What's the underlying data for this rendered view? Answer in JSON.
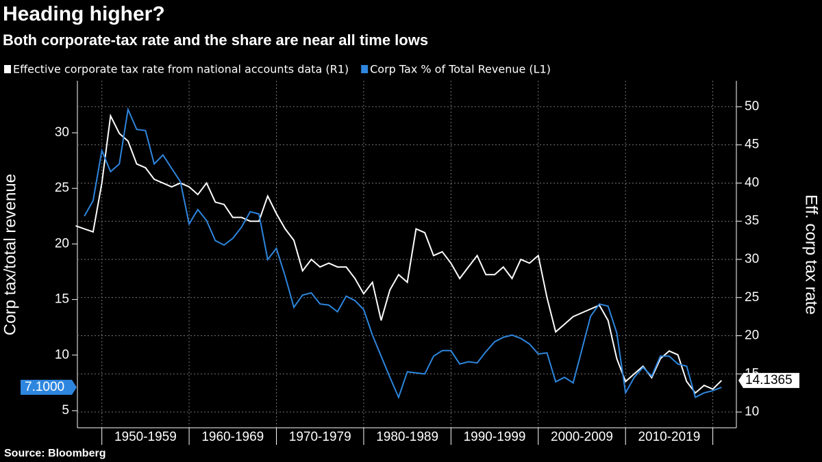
{
  "chart_data": {
    "type": "line",
    "title": "Heading higher?",
    "subtitle": "Both corporate-tax rate and the share are near all time lows",
    "ylabel": "Corp tax/total revenue",
    "y2label": "Eff. corp tax rate",
    "source": "Source: Bloomberg",
    "xlim": [
      1947.2,
      2022.7
    ],
    "xticks": [
      {
        "value": 1955,
        "label": "1950-1959"
      },
      {
        "value": 1965,
        "label": "1960-1969"
      },
      {
        "value": 1975,
        "label": "1970-1979"
      },
      {
        "value": 1985,
        "label": "1980-1989"
      },
      {
        "value": 1995,
        "label": "1990-1999"
      },
      {
        "value": 2005,
        "label": "2000-2009"
      },
      {
        "value": 2015,
        "label": "2010-2019"
      }
    ],
    "xgrid": [
      1950,
      1960,
      1970,
      1980,
      1990,
      2000,
      2010,
      2020
    ],
    "ylim": [
      3.46,
      34.68
    ],
    "yticks": [
      5,
      10,
      15,
      20,
      25,
      30
    ],
    "y2lim": [
      7.94,
      53.4
    ],
    "y2ticks": [
      10,
      15,
      20,
      25,
      30,
      35,
      40,
      45,
      50
    ],
    "grid": true,
    "series": [
      {
        "name": "Effective corporate tax rate from national accounts data (R1)",
        "color": "#ffffff",
        "axis": "y2",
        "x": [
          1947,
          1948,
          1949,
          1950,
          1951,
          1952,
          1953,
          1954,
          1955,
          1956,
          1957,
          1958,
          1959,
          1960,
          1961,
          1962,
          1963,
          1964,
          1965,
          1966,
          1967,
          1968,
          1969,
          1970,
          1971,
          1972,
          1973,
          1974,
          1975,
          1976,
          1977,
          1978,
          1979,
          1980,
          1981,
          1982,
          1983,
          1984,
          1985,
          1986,
          1987,
          1988,
          1989,
          1990,
          1991,
          1992,
          1993,
          1994,
          1995,
          1996,
          1997,
          1998,
          1999,
          2000,
          2001,
          2002,
          2003,
          2004,
          2005,
          2006,
          2007,
          2008,
          2009,
          2010,
          2011,
          2012,
          2013,
          2014,
          2015,
          2016,
          2017,
          2018,
          2019,
          2020,
          2021
        ],
        "values": [
          34.4,
          34.0,
          33.6,
          40.0,
          48.8,
          46.5,
          45.5,
          42.5,
          42.0,
          40.5,
          40.0,
          39.5,
          40.0,
          39.5,
          38.5,
          40.0,
          37.5,
          37.2,
          35.5,
          35.5,
          35.0,
          35.0,
          38.3,
          36.0,
          34.0,
          32.5,
          28.5,
          30.0,
          29.0,
          29.5,
          29.0,
          29.0,
          27.5,
          25.5,
          27.0,
          22.0,
          26.0,
          28.0,
          27.0,
          34.0,
          33.5,
          30.5,
          31.0,
          29.5,
          27.5,
          29.0,
          30.5,
          28.0,
          28.0,
          29.0,
          27.5,
          30.0,
          29.5,
          30.5,
          25.0,
          20.5,
          21.5,
          22.5,
          23.0,
          23.5,
          24.0,
          22.0,
          17.0,
          14.0,
          15.0,
          16.0,
          14.5,
          17.0,
          18.0,
          17.5,
          14.0,
          12.5,
          13.5,
          13.0,
          14.1365
        ],
        "value_labels": [
          null,
          null,
          null,
          null,
          null,
          null,
          null,
          null,
          null,
          null,
          null,
          null,
          null,
          null,
          null,
          null,
          null,
          null,
          null,
          null,
          null,
          null,
          null,
          null,
          null,
          null,
          null,
          null,
          null,
          null,
          null,
          null,
          null,
          null,
          null,
          null,
          null,
          null,
          null,
          null,
          null,
          null,
          null,
          null,
          null,
          null,
          null,
          null,
          null,
          null,
          null,
          null,
          null,
          null,
          null,
          null,
          null,
          null,
          null,
          null,
          null,
          null,
          null,
          null,
          null,
          null,
          null,
          null,
          null,
          null,
          null,
          null,
          null,
          null,
          "14.1365"
        ]
      },
      {
        "name": "Corp  Tax % of Total Revenue (L1)",
        "color": "#2e86de",
        "x": [
          1948,
          1949,
          1950,
          1951,
          1952,
          1953,
          1954,
          1955,
          1956,
          1957,
          1958,
          1959,
          1960,
          1961,
          1962,
          1963,
          1964,
          1965,
          1966,
          1967,
          1968,
          1969,
          1970,
          1971,
          1972,
          1973,
          1974,
          1975,
          1976,
          1977,
          1978,
          1979,
          1980,
          1981,
          1982,
          1983,
          1984,
          1985,
          1986,
          1987,
          1988,
          1989,
          1990,
          1991,
          1992,
          1993,
          1994,
          1995,
          1996,
          1997,
          1998,
          1999,
          2000,
          2001,
          2002,
          2003,
          2004,
          2005,
          2006,
          2007,
          2008,
          2009,
          2010,
          2011,
          2012,
          2013,
          2014,
          2015,
          2016,
          2017,
          2018,
          2019,
          2020,
          2021
        ],
        "values": [
          22.5,
          23.9,
          28.4,
          26.5,
          27.2,
          32.1,
          30.3,
          30.2,
          27.2,
          28.0,
          26.8,
          25.6,
          21.8,
          23.1,
          22.1,
          20.3,
          19.9,
          20.5,
          21.5,
          22.9,
          22.7,
          18.6,
          19.6,
          17.1,
          14.3,
          15.4,
          15.6,
          14.6,
          14.5,
          13.9,
          15.3,
          14.9,
          14.1,
          11.8,
          9.9,
          8.0,
          6.2,
          8.5,
          8.4,
          8.3,
          9.9,
          10.4,
          10.4,
          9.2,
          9.4,
          9.3,
          10.3,
          11.2,
          11.6,
          11.8,
          11.5,
          11.0,
          10.1,
          10.2,
          7.6,
          8.0,
          7.5,
          10.5,
          13.5,
          14.6,
          14.4,
          12.0,
          6.6,
          8.0,
          8.9,
          8.1,
          9.9,
          9.9,
          9.2,
          9.0,
          6.2,
          6.6,
          6.8,
          7.1
        ],
        "value_labels": [
          null,
          null,
          null,
          null,
          null,
          null,
          null,
          null,
          null,
          null,
          null,
          null,
          null,
          null,
          null,
          null,
          null,
          null,
          null,
          null,
          null,
          null,
          null,
          null,
          null,
          null,
          null,
          null,
          null,
          null,
          null,
          null,
          null,
          null,
          null,
          null,
          null,
          null,
          null,
          null,
          null,
          null,
          null,
          null,
          null,
          null,
          null,
          null,
          null,
          null,
          null,
          null,
          null,
          null,
          null,
          null,
          null,
          null,
          null,
          null,
          null,
          null,
          null,
          null,
          null,
          null,
          null,
          null,
          null,
          null,
          null,
          null,
          null,
          "7.1000"
        ]
      }
    ]
  }
}
